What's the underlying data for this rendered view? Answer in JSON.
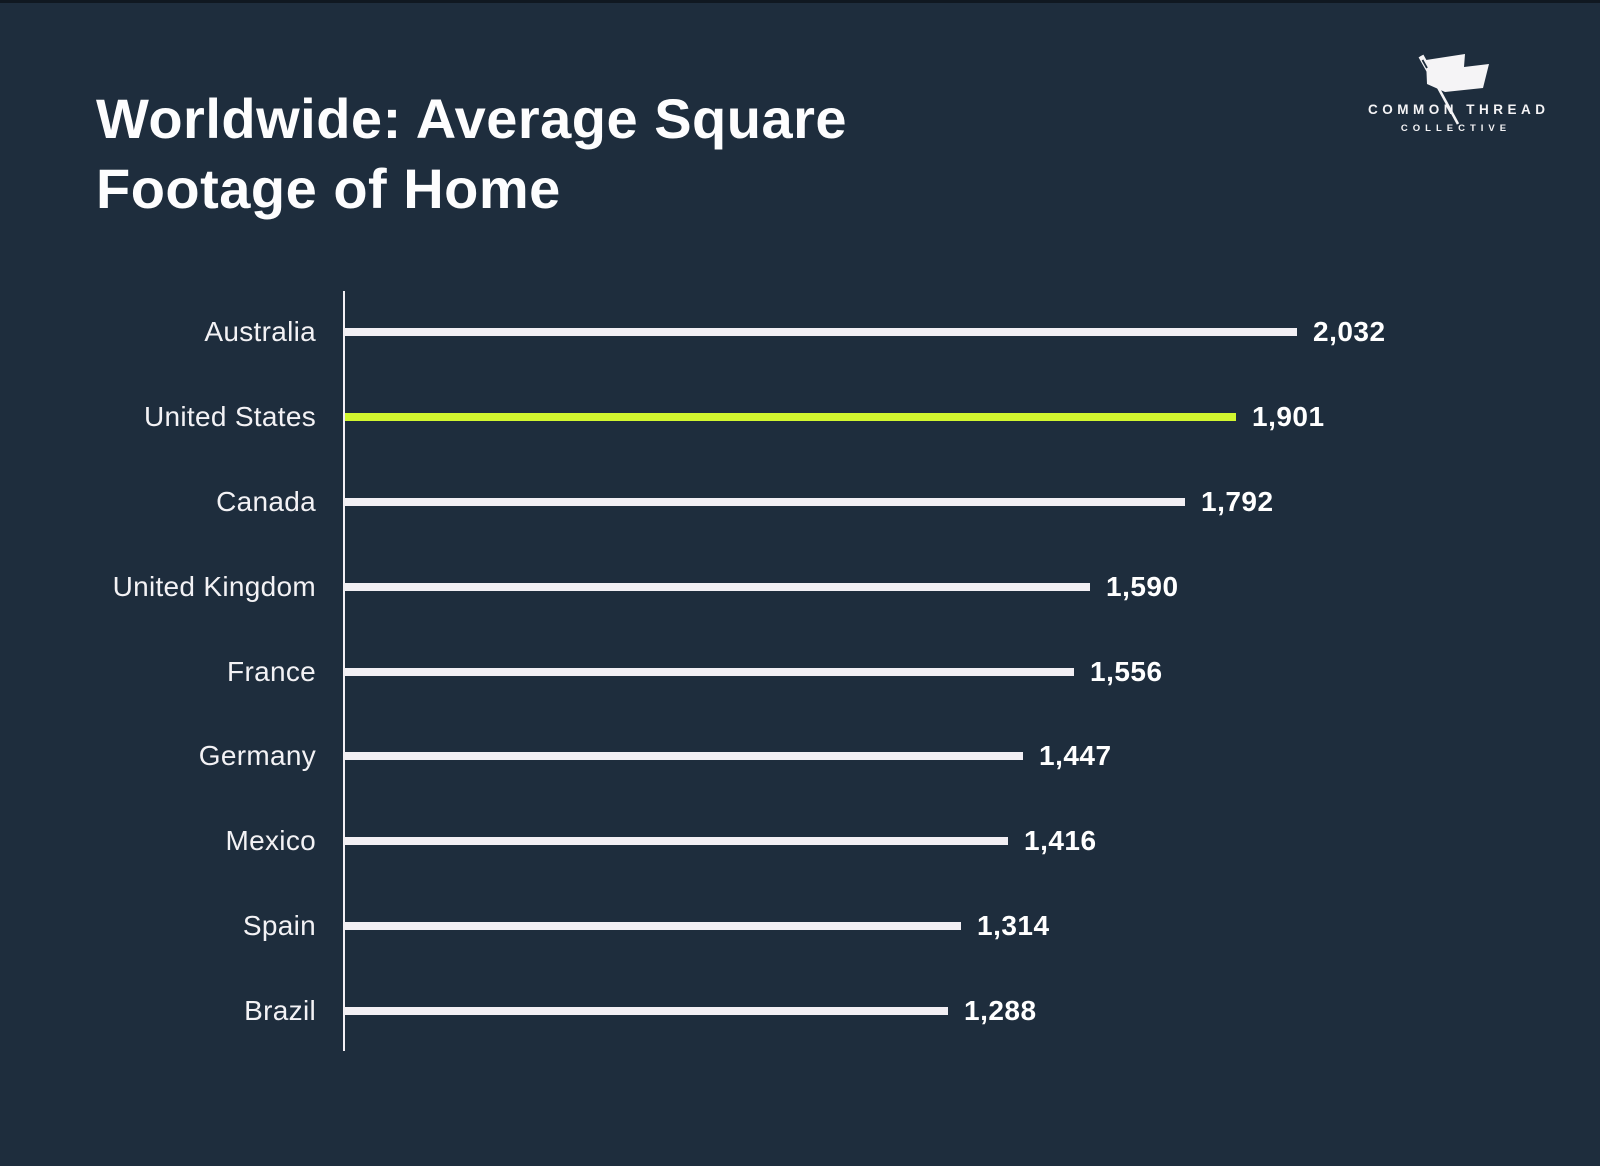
{
  "page": {
    "background": "#1e2d3d",
    "title_line1": "Worldwide: Average Square",
    "title_line2": "Footage of Home"
  },
  "logo": {
    "icon": "needle-flag-icon",
    "line1": "COMMON THREAD",
    "line2": "COLLECTIVE"
  },
  "chart_data": {
    "type": "bar",
    "orientation": "horizontal",
    "title": "Worldwide: Average Square Footage of Home",
    "xlabel": "",
    "ylabel": "",
    "categories": [
      "Australia",
      "United States",
      "Canada",
      "United Kingdom",
      "France",
      "Germany",
      "Mexico",
      "Spain",
      "Brazil"
    ],
    "values": [
      2032,
      1901,
      1792,
      1590,
      1556,
      1447,
      1416,
      1314,
      1288
    ],
    "value_labels": [
      "2,032",
      "1,901",
      "1,792",
      "1,590",
      "1,556",
      "1,447",
      "1,416",
      "1,314",
      "1,288"
    ],
    "xlim": [
      0,
      2032
    ],
    "grid": false,
    "legend": false,
    "highlight_index": 1,
    "highlight_category": "United States",
    "bar_color": "#f2eff4",
    "highlight_color": "#d2f62f",
    "axis_color": "#f2eff4",
    "background_color": "#1e2d3d"
  }
}
